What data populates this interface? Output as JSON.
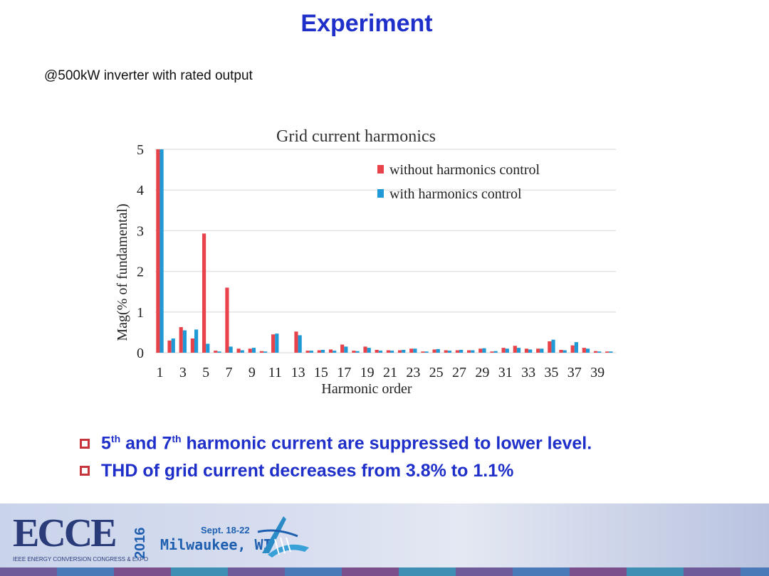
{
  "page": {
    "title": "Experiment",
    "subtitle": "@500kW inverter with  rated output"
  },
  "bullets": [
    {
      "lead": "5",
      "sup1": "th",
      "mid": " and 7",
      "sup2": "th",
      "tail": " harmonic current are suppressed to lower level."
    },
    {
      "text": "THD of grid current decreases from 3.8% to 1.1%"
    }
  ],
  "footer": {
    "logo": "ECCE",
    "logo_sub": "IEEE ENERGY CONVERSION CONGRESS & EXPO",
    "year": "2016",
    "date": "Sept. 18-22",
    "city": "Milwaukee, WI"
  },
  "colors": {
    "title": "#1f2fc9",
    "without": "#e8434a",
    "with": "#1f9ad6",
    "bullet_box": "#c8343b"
  },
  "chart_data": {
    "type": "bar",
    "title": "Grid current harmonics",
    "xlabel": "Harmonic order",
    "ylabel": "Mag(% of fundamental)",
    "ylim": [
      0,
      5
    ],
    "yticks": [
      0,
      1,
      2,
      3,
      4,
      5
    ],
    "grid": true,
    "legend_position": "top-right",
    "categories": [
      1,
      2,
      3,
      4,
      5,
      6,
      7,
      8,
      9,
      10,
      11,
      12,
      13,
      14,
      15,
      16,
      17,
      18,
      19,
      20,
      21,
      22,
      23,
      24,
      25,
      26,
      27,
      28,
      29,
      30,
      31,
      32,
      33,
      34,
      35,
      36,
      37,
      38,
      39,
      40
    ],
    "xtick_labels": [
      "1",
      "3",
      "5",
      "7",
      "9",
      "11",
      "13",
      "15",
      "17",
      "19",
      "21",
      "23",
      "25",
      "27",
      "29",
      "31",
      "33",
      "35",
      "37",
      "39"
    ],
    "series": [
      {
        "name": "without harmonics control",
        "values": [
          5.0,
          0.3,
          0.63,
          0.35,
          2.93,
          0.05,
          1.6,
          0.1,
          0.1,
          0.04,
          0.45,
          0.0,
          0.52,
          0.05,
          0.06,
          0.08,
          0.2,
          0.05,
          0.15,
          0.07,
          0.06,
          0.06,
          0.1,
          0.03,
          0.08,
          0.06,
          0.06,
          0.06,
          0.1,
          0.03,
          0.12,
          0.17,
          0.1,
          0.1,
          0.28,
          0.07,
          0.18,
          0.12,
          0.04,
          0.03
        ]
      },
      {
        "name": "with harmonics control",
        "values": [
          5.0,
          0.35,
          0.55,
          0.57,
          0.22,
          0.03,
          0.15,
          0.06,
          0.12,
          0.03,
          0.47,
          0.0,
          0.43,
          0.05,
          0.07,
          0.05,
          0.15,
          0.04,
          0.12,
          0.05,
          0.05,
          0.07,
          0.1,
          0.03,
          0.09,
          0.05,
          0.07,
          0.06,
          0.11,
          0.04,
          0.1,
          0.12,
          0.08,
          0.1,
          0.32,
          0.06,
          0.26,
          0.1,
          0.03,
          0.03
        ]
      }
    ]
  }
}
